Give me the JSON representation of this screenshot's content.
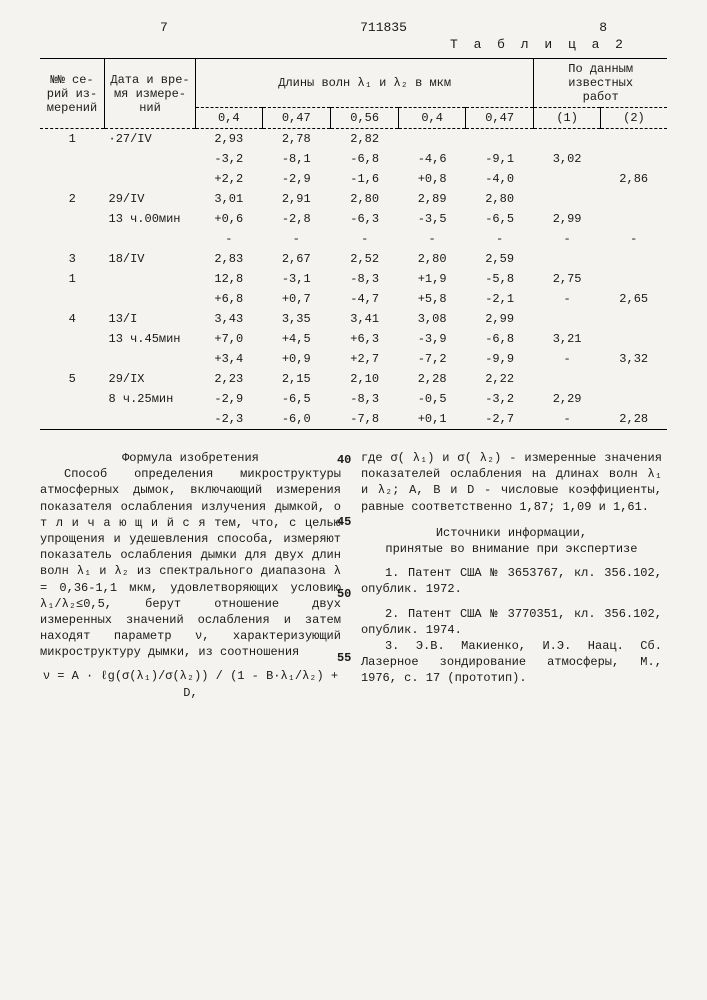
{
  "header": {
    "left_num": "7",
    "center_num": "711835",
    "right_num": "8",
    "table_label": "Т а б л и ц а 2"
  },
  "table": {
    "head": {
      "c1": "№№ се-\nрий из-\nмерений",
      "c2": "Дата и вре-\nмя измере-\nний",
      "c3_span": "Длины волн λ₁ и λ₂ в  мкм",
      "c3a": "0,4",
      "c3b": "0,47",
      "c3c": "0,56",
      "c3d": "0,4",
      "c3e": "0,47",
      "c4_span": "По данным\nизвестных\nработ",
      "c4a": "(1)",
      "c4b": "(2)"
    },
    "rows": [
      [
        "1",
        "·27/IV",
        "2,93",
        "2,78",
        "2,82",
        "",
        "",
        "",
        ""
      ],
      [
        "",
        "",
        "-3,2",
        "-8,1",
        "-6,8",
        "-4,6",
        "-9,1",
        "3,02",
        ""
      ],
      [
        "",
        "",
        "+2,2",
        "-2,9",
        "-1,6",
        "+0,8",
        "-4,0",
        "",
        "2,86"
      ],
      [
        "2",
        "29/IV",
        "3,01",
        "2,91",
        "2,80",
        "2,89",
        "2,80",
        "",
        ""
      ],
      [
        "",
        "13 ч.00мин",
        "+0,6",
        "-2,8",
        "-6,3",
        "-3,5",
        "-6,5",
        "2,99",
        ""
      ],
      [
        "",
        "",
        "-",
        "-",
        "-",
        "-",
        "-",
        "-",
        "-"
      ],
      [
        "3",
        "18/IV",
        "2,83",
        "2,67",
        "2,52",
        "2,80",
        "2,59",
        "",
        ""
      ],
      [
        "1",
        "",
        "12,8",
        "-3,1",
        "-8,3",
        "+1,9",
        "-5,8",
        "2,75",
        ""
      ],
      [
        "",
        "",
        "+6,8",
        "+0,7",
        "-4,7",
        "+5,8",
        "-2,1",
        "-",
        "2,65"
      ],
      [
        "4",
        "13/I",
        "3,43",
        "3,35",
        "3,41",
        "3,08",
        "2,99",
        "",
        ""
      ],
      [
        "",
        "13 ч.45мин",
        "+7,0",
        "+4,5",
        "+6,3",
        "-3,9",
        "-6,8",
        "3,21",
        ""
      ],
      [
        "",
        "",
        "+3,4",
        "+0,9",
        "+2,7",
        "-7,2",
        "-9,9",
        "-",
        "3,32"
      ],
      [
        "5",
        "29/IX",
        "2,23",
        "2,15",
        "2,10",
        "2,28",
        "2,22",
        "",
        ""
      ],
      [
        "",
        "8 ч.25мин",
        "-2,9",
        "-6,5",
        "-8,3",
        "-0,5",
        "-3,2",
        "2,29",
        ""
      ],
      [
        "",
        "",
        "-2,3",
        "-6,0",
        "-7,8",
        "+0,1",
        "-2,7",
        "-",
        "2,28"
      ]
    ]
  },
  "text": {
    "title": "Формула изобретения",
    "p1": "Способ определения микроструктуры атмосферных дымок, включающий измерения показателя ослабления излучения дымкой, о т л и ч а ю щ и й с я тем, что, с целью упрощения и удешевления способа, измеряют показатель ослабления дымки для двух длин волн λ₁ и λ₂ из спектрального диапазона λ = 0,36-1,1 мкм, удовлетворяющих условию λ₁/λ₂≤0,5, берут отношение двух измеренных значений ослабления и затем находят параметр ν, характеризующий микроструктуру дымки, из соотношения",
    "formula": "ν = A · ℓg(σ(λ₁)/σ(λ₂)) / (1 - B·λ₁/λ₂) + D,",
    "p2a": "где σ( λ₁) и σ( λ₂)  - измеренные значения показателей ослабления на длинах волн λ₁ и λ₂; A, B и D - числовые коэффициенты, равные соответственно 1,87; 1,09 и 1,61.",
    "src_title": "Источники информации,\nпринятые во внимание при экспертизе",
    "ref1": "1. Патент США № 3653767, кл. 356.102, опублик. 1972.",
    "ref2": "2. Патент США № 3770351, кл. 356.102, опублик. 1974.",
    "ref3": "3. Э.В. Макиенко, И.Э. Наац. Сб. Лазерное зондирование атмосферы, М., 1976, с. 17 (прототип).",
    "ln40": "40",
    "ln45": "45",
    "ln50": "50",
    "ln55": "55"
  }
}
